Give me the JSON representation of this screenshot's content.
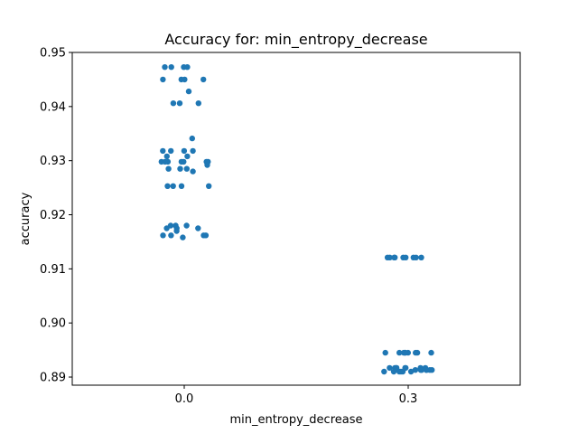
{
  "chart_data": {
    "type": "scatter",
    "title": "Accuracy for: min_entropy_decrease",
    "xlabel": "min_entropy_decrease",
    "ylabel": "accuracy",
    "categories": [
      "0.0",
      "0.3"
    ],
    "ylim": [
      0.8885,
      0.95
    ],
    "yticks": [
      "0.89",
      "0.90",
      "0.91",
      "0.92",
      "0.93",
      "0.94",
      "0.95"
    ],
    "grid": false,
    "color": "#1f77b4",
    "points": [
      {
        "x": "0.0",
        "y": 0.9473
      },
      {
        "x": "0.0",
        "y": 0.9473
      },
      {
        "x": "0.0",
        "y": 0.9473
      },
      {
        "x": "0.0",
        "y": 0.9473
      },
      {
        "x": "0.0",
        "y": 0.945
      },
      {
        "x": "0.0",
        "y": 0.945
      },
      {
        "x": "0.0",
        "y": 0.945
      },
      {
        "x": "0.0",
        "y": 0.945
      },
      {
        "x": "0.0",
        "y": 0.9428
      },
      {
        "x": "0.0",
        "y": 0.9406
      },
      {
        "x": "0.0",
        "y": 0.9406
      },
      {
        "x": "0.0",
        "y": 0.9406
      },
      {
        "x": "0.0",
        "y": 0.9341
      },
      {
        "x": "0.0",
        "y": 0.9318
      },
      {
        "x": "0.0",
        "y": 0.9318
      },
      {
        "x": "0.0",
        "y": 0.9318
      },
      {
        "x": "0.0",
        "y": 0.9318
      },
      {
        "x": "0.0",
        "y": 0.9308
      },
      {
        "x": "0.0",
        "y": 0.9308
      },
      {
        "x": "0.0",
        "y": 0.9298
      },
      {
        "x": "0.0",
        "y": 0.9298
      },
      {
        "x": "0.0",
        "y": 0.9298
      },
      {
        "x": "0.0",
        "y": 0.9298
      },
      {
        "x": "0.0",
        "y": 0.9298
      },
      {
        "x": "0.0",
        "y": 0.9298
      },
      {
        "x": "0.0",
        "y": 0.9298
      },
      {
        "x": "0.0",
        "y": 0.9292
      },
      {
        "x": "0.0",
        "y": 0.9285
      },
      {
        "x": "0.0",
        "y": 0.9285
      },
      {
        "x": "0.0",
        "y": 0.9285
      },
      {
        "x": "0.0",
        "y": 0.928
      },
      {
        "x": "0.0",
        "y": 0.9253
      },
      {
        "x": "0.0",
        "y": 0.9253
      },
      {
        "x": "0.0",
        "y": 0.9253
      },
      {
        "x": "0.0",
        "y": 0.9253
      },
      {
        "x": "0.0",
        "y": 0.918
      },
      {
        "x": "0.0",
        "y": 0.918
      },
      {
        "x": "0.0",
        "y": 0.918
      },
      {
        "x": "0.0",
        "y": 0.9175
      },
      {
        "x": "0.0",
        "y": 0.9175
      },
      {
        "x": "0.0",
        "y": 0.9175
      },
      {
        "x": "0.0",
        "y": 0.917
      },
      {
        "x": "0.0",
        "y": 0.9162
      },
      {
        "x": "0.0",
        "y": 0.9162
      },
      {
        "x": "0.0",
        "y": 0.9162
      },
      {
        "x": "0.0",
        "y": 0.9162
      },
      {
        "x": "0.0",
        "y": 0.9158
      },
      {
        "x": "0.3",
        "y": 0.9121
      },
      {
        "x": "0.3",
        "y": 0.9121
      },
      {
        "x": "0.3",
        "y": 0.9121
      },
      {
        "x": "0.3",
        "y": 0.9121
      },
      {
        "x": "0.3",
        "y": 0.9121
      },
      {
        "x": "0.3",
        "y": 0.9121
      },
      {
        "x": "0.3",
        "y": 0.9121
      },
      {
        "x": "0.3",
        "y": 0.9121
      },
      {
        "x": "0.3",
        "y": 0.9121
      },
      {
        "x": "0.3",
        "y": 0.8945
      },
      {
        "x": "0.3",
        "y": 0.8945
      },
      {
        "x": "0.3",
        "y": 0.8945
      },
      {
        "x": "0.3",
        "y": 0.8945
      },
      {
        "x": "0.3",
        "y": 0.8945
      },
      {
        "x": "0.3",
        "y": 0.8945
      },
      {
        "x": "0.3",
        "y": 0.8945
      },
      {
        "x": "0.3",
        "y": 0.8945
      },
      {
        "x": "0.3",
        "y": 0.8945
      },
      {
        "x": "0.3",
        "y": 0.8917
      },
      {
        "x": "0.3",
        "y": 0.8917
      },
      {
        "x": "0.3",
        "y": 0.8917
      },
      {
        "x": "0.3",
        "y": 0.8917
      },
      {
        "x": "0.3",
        "y": 0.8917
      },
      {
        "x": "0.3",
        "y": 0.8917
      },
      {
        "x": "0.3",
        "y": 0.8917
      },
      {
        "x": "0.3",
        "y": 0.8917
      },
      {
        "x": "0.3",
        "y": 0.8913
      },
      {
        "x": "0.3",
        "y": 0.8913
      },
      {
        "x": "0.3",
        "y": 0.8913
      },
      {
        "x": "0.3",
        "y": 0.8913
      },
      {
        "x": "0.3",
        "y": 0.8913
      },
      {
        "x": "0.3",
        "y": 0.8913
      },
      {
        "x": "0.3",
        "y": 0.8913
      },
      {
        "x": "0.3",
        "y": 0.891
      },
      {
        "x": "0.3",
        "y": 0.891
      },
      {
        "x": "0.3",
        "y": 0.891
      },
      {
        "x": "0.3",
        "y": 0.891
      },
      {
        "x": "0.3",
        "y": 0.891
      },
      {
        "x": "0.3",
        "y": 0.891
      }
    ]
  }
}
